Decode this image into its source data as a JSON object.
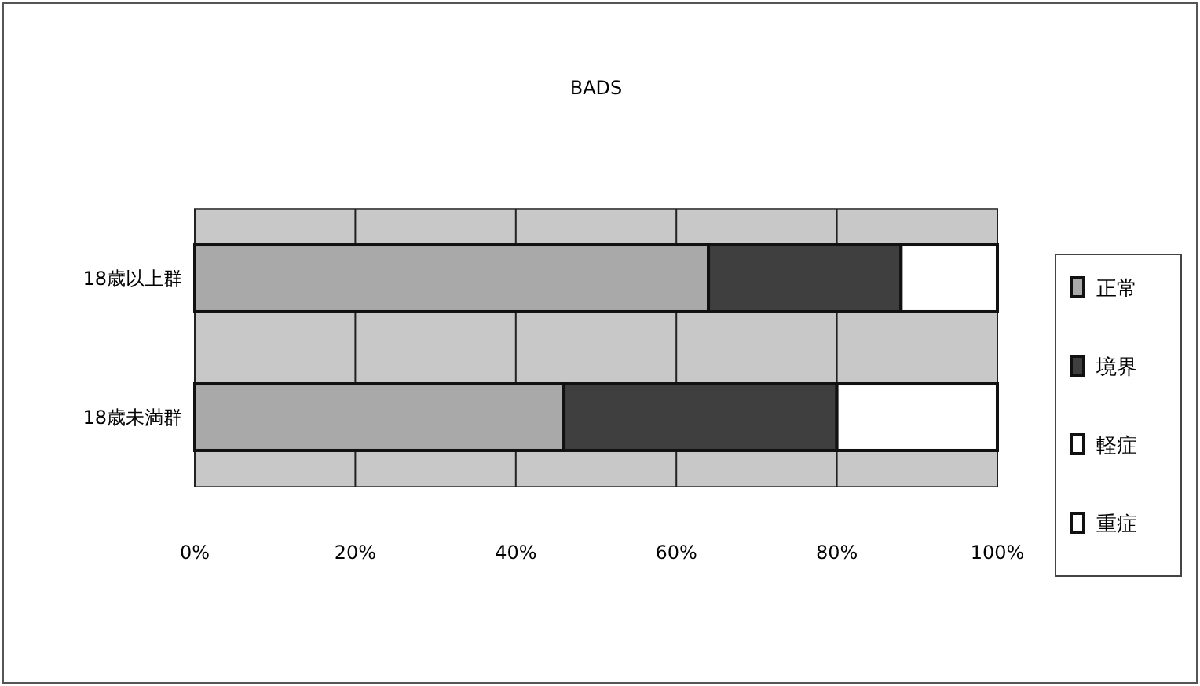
{
  "chart_data": {
    "type": "bar",
    "orientation": "horizontal",
    "stacked": true,
    "title": "BADS",
    "categories": [
      "18歳以上群",
      "18歳未満群"
    ],
    "series": [
      {
        "name": "正常",
        "color": "#a9a9a9",
        "values": [
          64,
          46
        ]
      },
      {
        "name": "境界",
        "color": "#3f3f3f",
        "values": [
          24,
          34
        ]
      },
      {
        "name": "軽症",
        "color": "#ffffff",
        "values": [
          12,
          20
        ]
      },
      {
        "name": "重症",
        "color": "#ffffff",
        "values": [
          0,
          0
        ]
      }
    ],
    "xlim": [
      0,
      100
    ],
    "xticks": [
      {
        "value": 0,
        "label": "0%"
      },
      {
        "value": 20,
        "label": "20%"
      },
      {
        "value": 40,
        "label": "40%"
      },
      {
        "value": 60,
        "label": "60%"
      },
      {
        "value": 80,
        "label": "80%"
      },
      {
        "value": 100,
        "label": "100%"
      }
    ],
    "grid": "x",
    "legend": "right"
  }
}
